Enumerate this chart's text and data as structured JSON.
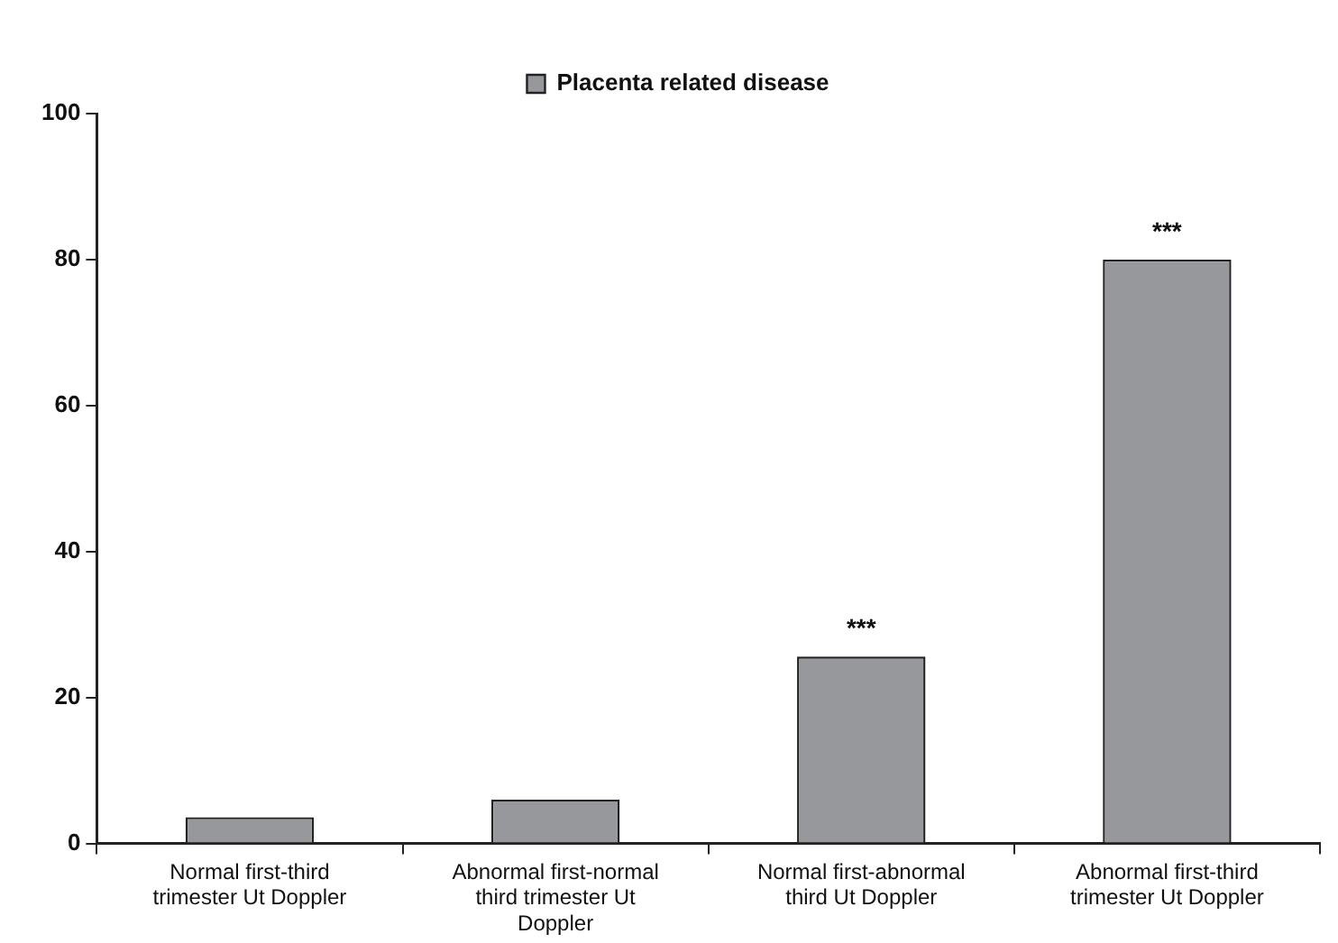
{
  "chart_data": {
    "type": "bar",
    "categories": [
      "Normal first-third trimester Ut Doppler",
      "Abnormal first-normal third trimester Ut Doppler",
      "Normal first-abnormal third Ut Doppler",
      "Abnormal first-third trimester Ut Doppler"
    ],
    "series": [
      {
        "name": "Placenta related disease",
        "color": "#97989b",
        "values": [
          3.6,
          6,
          25.6,
          80
        ]
      }
    ],
    "ylim": [
      0,
      100
    ],
    "yticks": [
      0,
      20,
      40,
      60,
      80,
      100
    ],
    "legend": "top",
    "annotations": [
      {
        "text": "***",
        "x": "Normal first-abnormal third Ut Doppler",
        "y": 25.6
      },
      {
        "text": "***",
        "x": "Abnormal first-third trimester Ut Doppler",
        "y": 80
      }
    ]
  }
}
